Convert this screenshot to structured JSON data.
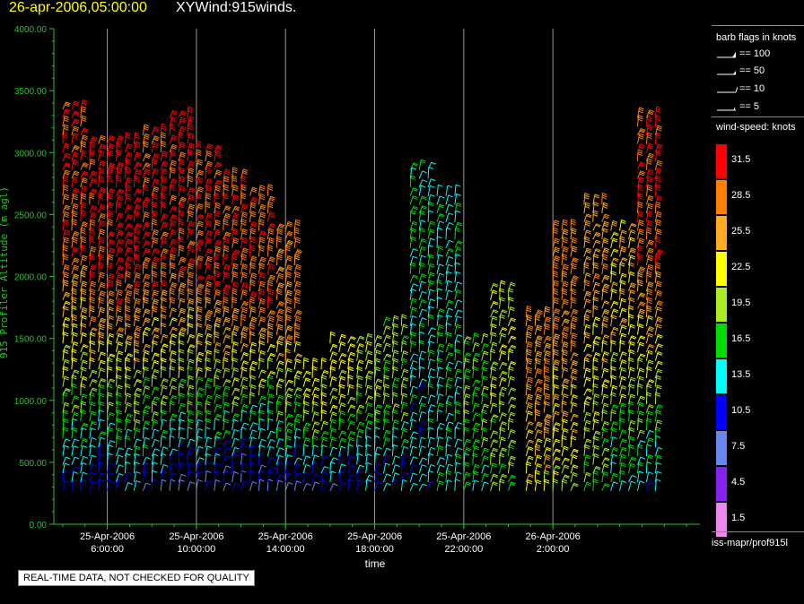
{
  "header": {
    "date": "26-apr-2006,05:00:00",
    "title": "XYWind:915winds."
  },
  "notice": "REAL-TIME DATA, NOT CHECKED FOR QUALITY",
  "legend": {
    "barb_heading": "barb flags in knots",
    "barb_flags": [
      {
        "label": "== 100",
        "icon": "pennant-barb"
      },
      {
        "label": "== 50",
        "icon": "half-pennant-barb"
      },
      {
        "label": "== 10",
        "icon": "full-feather-barb"
      },
      {
        "label": "== 5",
        "icon": "half-feather-barb"
      }
    ],
    "speed_heading": "wind-speed: knots",
    "speed_scale": [
      {
        "label": "31.5",
        "color": "#ff0000"
      },
      {
        "label": "28.5",
        "color": "#ff8000"
      },
      {
        "label": "25.5",
        "color": "#ffaa20"
      },
      {
        "label": "22.5",
        "color": "#ffff00"
      },
      {
        "label": "19.5",
        "color": "#aaee22"
      },
      {
        "label": "16.5",
        "color": "#00dd00"
      },
      {
        "label": "13.5",
        "color": "#00ffff"
      },
      {
        "label": "10.5",
        "color": "#0000ff"
      },
      {
        "label": "7.5",
        "color": "#6688ee"
      },
      {
        "label": "4.5",
        "color": "#8822ee"
      },
      {
        "label": "1.5",
        "color": "#ee88ee"
      }
    ],
    "source": "iss-mapr/prof915l"
  },
  "chart_data": {
    "type": "wind-barb time-height",
    "ylabel": "915 Profiler Altitude (m agl)",
    "xlabel": "time",
    "ylim": [
      0,
      4000
    ],
    "yticks": [
      "0.00",
      "500.00",
      "1000.00",
      "1500.00",
      "2000.00",
      "2500.00",
      "3000.00",
      "3500.00",
      "4000.00"
    ],
    "xlim_hours": [
      3.6,
      32.6
    ],
    "xticks": [
      {
        "hours": 6,
        "date": "25-Apr-2006",
        "time": "6:00:00"
      },
      {
        "hours": 10,
        "date": "25-Apr-2006",
        "time": "10:00:00"
      },
      {
        "hours": 14,
        "date": "25-Apr-2006",
        "time": "14:00:00"
      },
      {
        "hours": 18,
        "date": "25-Apr-2006",
        "time": "18:00:00"
      },
      {
        "hours": 22,
        "date": "25-Apr-2006",
        "time": "22:00:00"
      },
      {
        "hours": 26,
        "date": "26-Apr-2006",
        "time": "2:00:00"
      }
    ],
    "gridlines": true,
    "profiles": [
      {
        "t": 4.0,
        "top": 3400,
        "upper_kt": 30,
        "lower_kt": 12
      },
      {
        "t": 5.2,
        "top": 3100,
        "upper_kt": 31,
        "lower_kt": 10
      },
      {
        "t": 6.4,
        "top": 3100,
        "upper_kt": 32,
        "lower_kt": 11
      },
      {
        "t": 7.6,
        "top": 3200,
        "upper_kt": 31,
        "lower_kt": 10
      },
      {
        "t": 8.8,
        "top": 3300,
        "upper_kt": 31,
        "lower_kt": 9
      },
      {
        "t": 10.0,
        "top": 3000,
        "upper_kt": 30,
        "lower_kt": 9
      },
      {
        "t": 11.2,
        "top": 2800,
        "upper_kt": 30,
        "lower_kt": 8
      },
      {
        "t": 12.4,
        "top": 2700,
        "upper_kt": 29,
        "lower_kt": 8
      },
      {
        "t": 13.6,
        "top": 2400,
        "upper_kt": 28,
        "lower_kt": 9
      },
      {
        "t": 14.8,
        "top": 1300,
        "upper_kt": 22,
        "lower_kt": 9
      },
      {
        "t": 16.0,
        "top": 1500,
        "upper_kt": 22,
        "lower_kt": 10
      },
      {
        "t": 17.2,
        "top": 1500,
        "upper_kt": 20,
        "lower_kt": 11
      },
      {
        "t": 18.4,
        "top": 1600,
        "upper_kt": 19,
        "lower_kt": 12
      },
      {
        "t": 19.6,
        "top": 2900,
        "upper_kt": 15,
        "lower_kt": 13
      },
      {
        "t": 20.8,
        "top": 2700,
        "upper_kt": 14,
        "lower_kt": 14
      },
      {
        "t": 22.0,
        "top": 1500,
        "upper_kt": 18,
        "lower_kt": 16
      },
      {
        "t": 23.2,
        "top": 1900,
        "upper_kt": 21,
        "lower_kt": 18
      },
      {
        "t": 24.8,
        "top": 1700,
        "upper_kt": 27,
        "lower_kt": 22
      },
      {
        "t": 26.0,
        "top": 2400,
        "upper_kt": 28,
        "lower_kt": 20
      },
      {
        "t": 27.4,
        "top": 2600,
        "upper_kt": 26,
        "lower_kt": 17
      },
      {
        "t": 28.6,
        "top": 2400,
        "upper_kt": 24,
        "lower_kt": 14
      },
      {
        "t": 29.8,
        "top": 3300,
        "upper_kt": 30,
        "lower_kt": 13
      }
    ]
  }
}
